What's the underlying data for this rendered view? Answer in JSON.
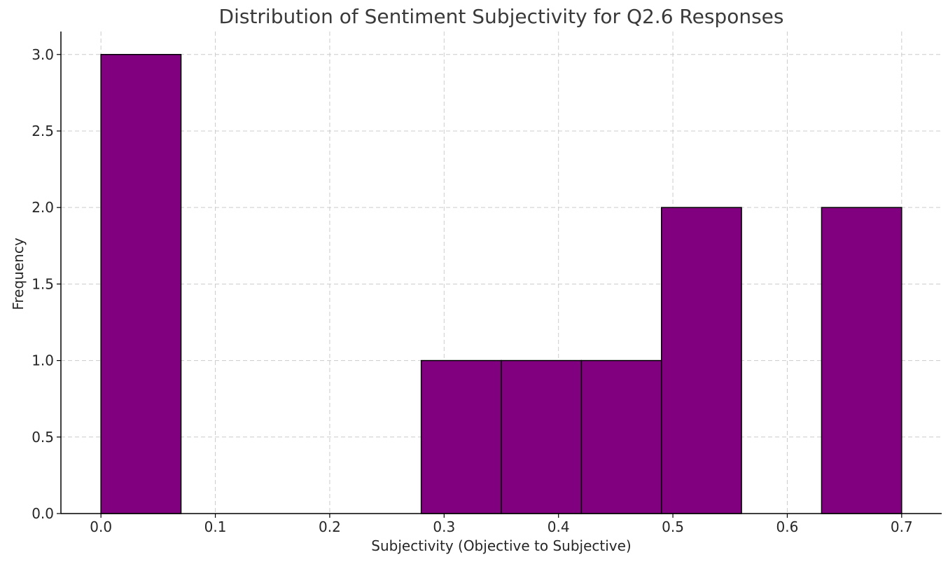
{
  "chart_data": {
    "type": "bar",
    "title": "Distribution of Sentiment Subjectivity for Q2.6 Responses",
    "xlabel": "Subjectivity (Objective to Subjective)",
    "ylabel": "Frequency",
    "xlim": [
      -0.035,
      0.735
    ],
    "ylim": [
      0,
      3.15
    ],
    "x_ticks": [
      0.0,
      0.1,
      0.2,
      0.3,
      0.4,
      0.5,
      0.6,
      0.7
    ],
    "x_tick_labels": [
      "0.0",
      "0.1",
      "0.2",
      "0.3",
      "0.4",
      "0.5",
      "0.6",
      "0.7"
    ],
    "y_ticks": [
      0.0,
      0.5,
      1.0,
      1.5,
      2.0,
      2.5,
      3.0
    ],
    "y_tick_labels": [
      "0.0",
      "0.5",
      "1.0",
      "1.5",
      "2.0",
      "2.5",
      "3.0"
    ],
    "bins": [
      {
        "start": 0.0,
        "end": 0.07,
        "count": 3
      },
      {
        "start": 0.07,
        "end": 0.14,
        "count": 0
      },
      {
        "start": 0.14,
        "end": 0.21,
        "count": 0
      },
      {
        "start": 0.21,
        "end": 0.28,
        "count": 0
      },
      {
        "start": 0.28,
        "end": 0.35,
        "count": 1
      },
      {
        "start": 0.35,
        "end": 0.42,
        "count": 1
      },
      {
        "start": 0.42,
        "end": 0.49,
        "count": 1
      },
      {
        "start": 0.49,
        "end": 0.56,
        "count": 2
      },
      {
        "start": 0.56,
        "end": 0.63,
        "count": 0
      },
      {
        "start": 0.63,
        "end": 0.7,
        "count": 2
      }
    ],
    "grid": true,
    "bar_color": "#800080",
    "edge_color": "#000000"
  }
}
